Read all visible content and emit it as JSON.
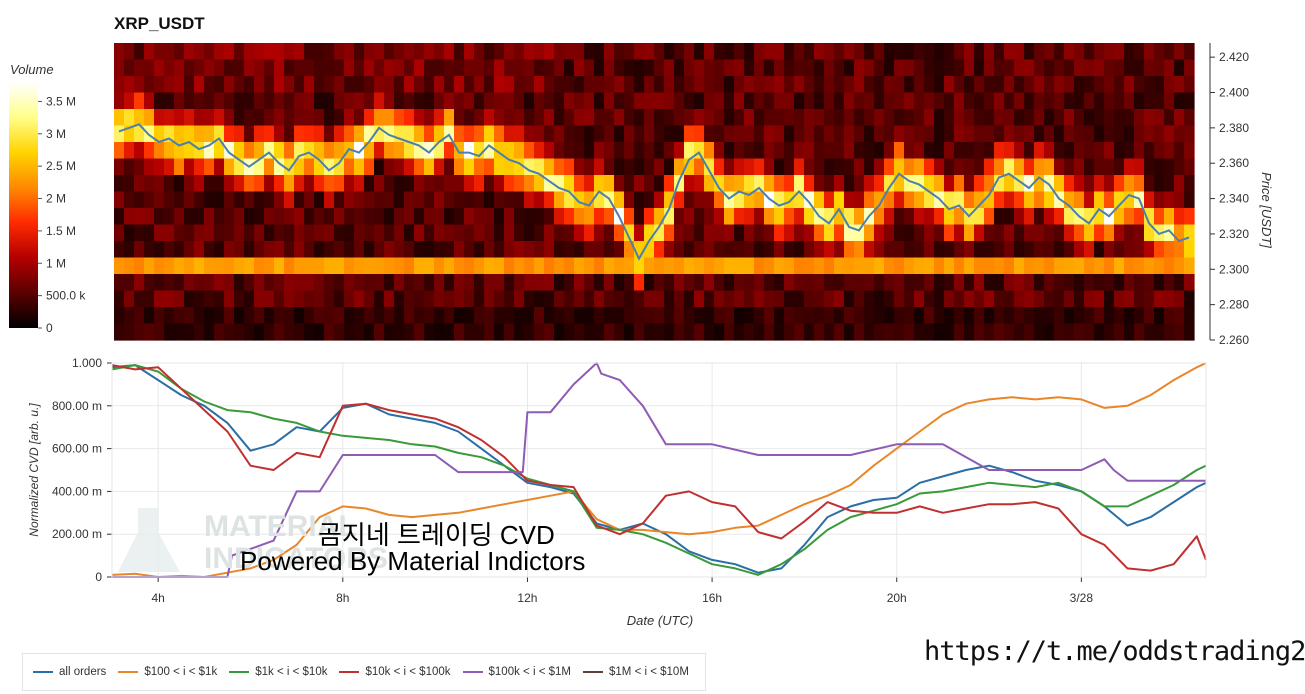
{
  "chart_data": [
    {
      "type": "heatmap",
      "title": "XRP_USDT",
      "ylabel": "Price [USDT]",
      "ylim": [
        2.26,
        2.428
      ],
      "y_ticks": [
        "2.260",
        "2.280",
        "2.300",
        "2.320",
        "2.340",
        "2.360",
        "2.380",
        "2.400",
        "2.420"
      ],
      "colorbar": {
        "title": "Volume",
        "range": [
          0,
          3800000
        ],
        "ticks": [
          "0",
          "500.0 k",
          "1 M",
          "1.5 M",
          "2 M",
          "2.5 M",
          "3 M",
          "3.5 M"
        ],
        "colors": [
          "#000000",
          "#5a0000",
          "#b40000",
          "#ff2a00",
          "#ff8a00",
          "#ffd400",
          "#ffff8a",
          "#ffffff"
        ]
      },
      "price_series_color": "#4a7fb0",
      "price_series": [
        2.378,
        2.38,
        2.382,
        2.376,
        2.372,
        2.374,
        2.37,
        2.372,
        2.368,
        2.37,
        2.374,
        2.366,
        2.362,
        2.358,
        2.362,
        2.366,
        2.36,
        2.356,
        2.364,
        2.366,
        2.362,
        2.356,
        2.36,
        2.368,
        2.366,
        2.372,
        2.38,
        2.376,
        2.374,
        2.372,
        2.37,
        2.366,
        2.372,
        2.376,
        2.366,
        2.366,
        2.364,
        2.37,
        2.366,
        2.362,
        2.36,
        2.356,
        2.354,
        2.35,
        2.346,
        2.344,
        2.338,
        2.336,
        2.344,
        2.34,
        2.33,
        2.318,
        2.306,
        2.316,
        2.324,
        2.334,
        2.35,
        2.362,
        2.366,
        2.356,
        2.346,
        2.34,
        2.344,
        2.342,
        2.346,
        2.34,
        2.336,
        2.338,
        2.344,
        2.338,
        2.33,
        2.326,
        2.334,
        2.324,
        2.322,
        2.33,
        2.336,
        2.346,
        2.354,
        2.35,
        2.348,
        2.344,
        2.34,
        2.334,
        2.336,
        2.33,
        2.336,
        2.342,
        2.352,
        2.354,
        2.35,
        2.346,
        2.352,
        2.348,
        2.34,
        2.336,
        2.33,
        2.326,
        2.334,
        2.33,
        2.336,
        2.342,
        2.34,
        2.326,
        2.32,
        2.322,
        2.316,
        2.318
      ],
      "hot_band_price": 2.302
    },
    {
      "type": "line",
      "xlabel": "Date (UTC)",
      "ylabel": "Normalized CVD [arb. u.]",
      "ylim": [
        0,
        1000
      ],
      "xlim": [
        3.0,
        26.7
      ],
      "x_ticks": [
        {
          "x": 4,
          "label": "4h"
        },
        {
          "x": 8,
          "label": "8h"
        },
        {
          "x": 12,
          "label": "12h"
        },
        {
          "x": 16,
          "label": "16h"
        },
        {
          "x": 20,
          "label": "20h"
        },
        {
          "x": 24,
          "label": "3/28"
        }
      ],
      "y_ticks": [
        "0",
        "200.00 m",
        "400.00 m",
        "600.00 m",
        "800.00 m",
        "1.000"
      ],
      "series": [
        {
          "name": "all orders",
          "color": "#2a6ea6",
          "x": [
            3.0,
            3.5,
            4,
            4.5,
            5,
            5.5,
            6,
            6.5,
            7,
            7.5,
            8,
            8.5,
            9,
            9.5,
            10,
            10.5,
            11,
            11.5,
            12,
            12.5,
            13,
            13.5,
            14,
            14.5,
            15,
            15.5,
            16,
            16.5,
            17,
            17.5,
            18,
            18.5,
            19,
            19.5,
            20,
            20.5,
            21,
            21.5,
            22,
            22.5,
            23,
            23.5,
            24,
            24.5,
            25,
            25.5,
            26,
            26.5,
            26.7
          ],
          "y": [
            980,
            990,
            920,
            850,
            800,
            720,
            590,
            620,
            700,
            680,
            790,
            810,
            760,
            740,
            720,
            680,
            600,
            520,
            440,
            420,
            390,
            250,
            220,
            250,
            200,
            120,
            80,
            60,
            20,
            40,
            150,
            280,
            330,
            360,
            370,
            440,
            470,
            500,
            520,
            490,
            450,
            430,
            400,
            330,
            240,
            280,
            350,
            420,
            440
          ]
        },
        {
          "name": "$100 < i < $1k",
          "color": "#e8872a",
          "x": [
            3.0,
            3.5,
            4,
            4.5,
            5,
            5.5,
            6,
            6.5,
            7,
            7.5,
            8,
            8.5,
            9,
            9.5,
            10,
            10.5,
            11,
            11.5,
            12,
            12.5,
            13,
            13.5,
            14,
            14.5,
            15,
            15.5,
            16,
            16.5,
            17,
            17.5,
            18,
            18.5,
            19,
            19.5,
            20,
            20.5,
            21,
            21.5,
            22,
            22.5,
            23,
            23.5,
            24,
            24.5,
            25,
            25.5,
            26,
            26.5,
            26.7
          ],
          "y": [
            10,
            15,
            0,
            5,
            0,
            20,
            40,
            80,
            150,
            280,
            330,
            320,
            290,
            280,
            290,
            300,
            320,
            340,
            360,
            380,
            400,
            270,
            220,
            220,
            210,
            200,
            210,
            230,
            240,
            290,
            340,
            380,
            430,
            520,
            600,
            680,
            760,
            810,
            830,
            840,
            830,
            840,
            830,
            790,
            800,
            850,
            920,
            980,
            1000
          ]
        },
        {
          "name": "$1k < i < $10k",
          "color": "#3a9a3a",
          "x": [
            3.0,
            3.5,
            4,
            4.5,
            5,
            5.5,
            6,
            6.5,
            7,
            7.5,
            8,
            8.5,
            9,
            9.5,
            10,
            10.5,
            11,
            11.5,
            12,
            12.5,
            13,
            13.5,
            14,
            14.5,
            15,
            15.5,
            16,
            16.5,
            17,
            17.5,
            18,
            18.5,
            19,
            19.5,
            20,
            20.5,
            21,
            21.5,
            22,
            22.5,
            23,
            23.5,
            24,
            24.5,
            25,
            25.5,
            26,
            26.5,
            26.7
          ],
          "y": [
            970,
            990,
            960,
            880,
            820,
            780,
            770,
            740,
            720,
            680,
            660,
            650,
            640,
            620,
            610,
            580,
            560,
            520,
            460,
            430,
            400,
            230,
            220,
            200,
            160,
            110,
            60,
            40,
            10,
            60,
            130,
            220,
            280,
            310,
            340,
            390,
            400,
            420,
            440,
            430,
            420,
            440,
            400,
            330,
            330,
            380,
            430,
            500,
            520
          ]
        },
        {
          "name": "$10k < i < $100k",
          "color": "#c03030",
          "x": [
            3.0,
            3.5,
            4,
            4.5,
            5,
            5.5,
            6,
            6.5,
            7,
            7.5,
            8,
            8.5,
            9,
            9.5,
            10,
            10.5,
            11,
            11.5,
            12,
            12.5,
            13,
            13.5,
            14,
            14.5,
            15,
            15.5,
            16,
            16.5,
            17,
            17.5,
            18,
            18.5,
            19,
            19.5,
            20,
            20.5,
            21,
            21.5,
            22,
            22.5,
            23,
            23.5,
            24,
            24.5,
            25,
            25.5,
            26,
            26.5,
            26.7
          ],
          "y": [
            990,
            970,
            980,
            880,
            780,
            680,
            520,
            500,
            580,
            560,
            800,
            810,
            780,
            760,
            740,
            700,
            640,
            560,
            450,
            430,
            420,
            240,
            200,
            250,
            380,
            400,
            350,
            330,
            210,
            180,
            260,
            350,
            310,
            300,
            300,
            330,
            300,
            320,
            340,
            340,
            350,
            320,
            200,
            150,
            40,
            30,
            60,
            190,
            80
          ]
        },
        {
          "name": "$100k < i < $1M",
          "color": "#8e5bb5",
          "x": [
            3.0,
            5.5,
            5.6,
            6.5,
            7,
            7.5,
            8,
            8.5,
            9,
            9.5,
            10,
            10.5,
            11,
            11.5,
            11.9,
            12,
            12.5,
            13,
            13.5,
            13.6,
            14,
            14.5,
            15,
            15.5,
            16,
            17,
            18,
            19,
            20,
            21,
            22,
            23,
            24,
            24.5,
            24.7,
            25,
            26,
            26.7
          ],
          "y": [
            0,
            0,
            100,
            170,
            400,
            400,
            570,
            570,
            570,
            570,
            570,
            490,
            490,
            490,
            490,
            770,
            770,
            900,
            1000,
            950,
            920,
            800,
            620,
            620,
            620,
            570,
            570,
            570,
            620,
            620,
            500,
            500,
            500,
            550,
            500,
            450,
            450,
            450
          ]
        },
        {
          "name": "$1M < i < $10M",
          "color": "#5d4037",
          "x": [],
          "y": []
        }
      ]
    }
  ],
  "watermark": {
    "line1": "MATERIAL",
    "line2": "INDICATORS"
  },
  "overlay": {
    "line1": "곰지네 트레이딩 CVD",
    "line2": "Powered By Material Indictors"
  },
  "link": "https://t.me/oddstrading2"
}
